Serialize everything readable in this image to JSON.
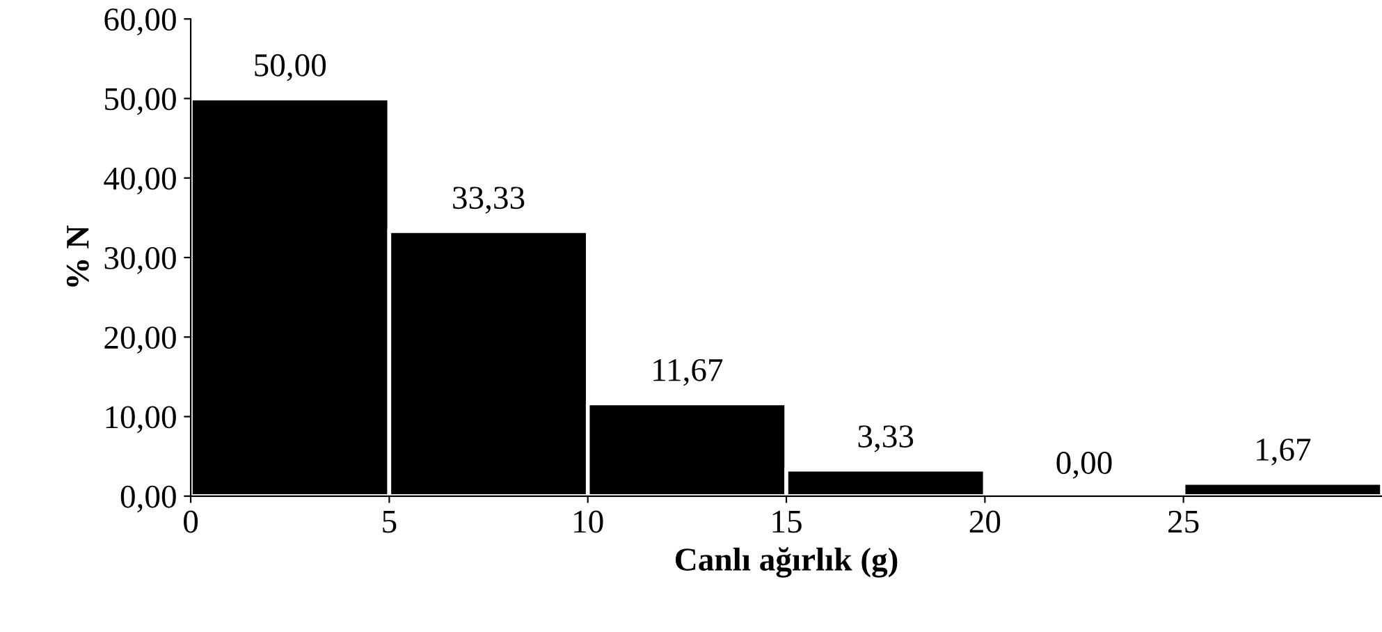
{
  "chart_data": {
    "type": "histogram",
    "xlabel": "Canlı ağırlık (g)",
    "ylabel": "% N",
    "bins": [
      0,
      5,
      10,
      15,
      20,
      25,
      30
    ],
    "values": [
      50,
      33.33,
      11.67,
      3.33,
      0,
      1.67
    ],
    "value_labels": [
      "50,00",
      "33,33",
      "11,67",
      "3,33",
      "0,00",
      "1,67"
    ],
    "color": "#000000",
    "xlim": [
      0,
      30
    ],
    "xticks": [
      0,
      5,
      10,
      15,
      20,
      25
    ],
    "ylim": [
      0,
      60
    ],
    "yticks": [
      {
        "value": 0,
        "label": "0,00"
      },
      {
        "value": 10,
        "label": "10,00"
      },
      {
        "value": 20,
        "label": "20,00"
      },
      {
        "value": 30,
        "label": "30,00"
      },
      {
        "value": 40,
        "label": "40,00"
      },
      {
        "value": 50,
        "label": "50,00"
      },
      {
        "value": 60,
        "label": "60,00"
      }
    ],
    "grid": false,
    "legend": false
  }
}
